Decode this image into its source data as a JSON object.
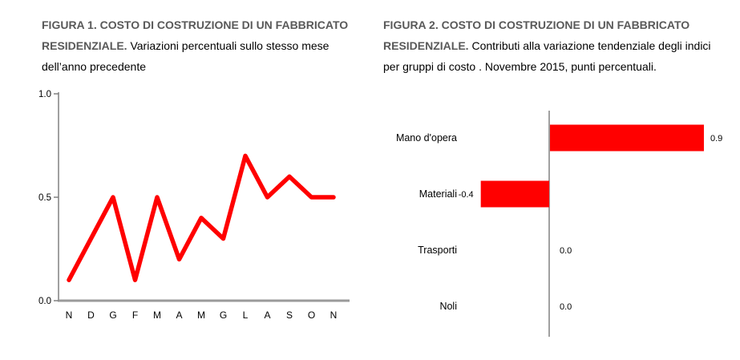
{
  "figure1": {
    "title_bold": "FIGURA 1. COSTO DI COSTRUZIONE DI UN FABBRICATO RESIDENZIALE.",
    "title_rest": " Variazioni percentuali sullo stesso mese dell’anno precedente"
  },
  "figure2": {
    "title_bold": "FIGURA 2. COSTO DI COSTRUZIONE DI UN FABBRICATO RESIDENZIALE.",
    "title_rest": " Contributi alla variazione tendenziale degli indici per gruppi di costo . Novembre 2015, punti percentuali."
  },
  "colors": {
    "series_red": "#ff0000",
    "axis_gray": "#808080",
    "baseline_gray": "#9a9a9a",
    "title_gray": "#595959",
    "text_black": "#000000"
  },
  "chart_data": [
    {
      "id": "figura1",
      "type": "line",
      "title": "FIGURA 1. COSTO DI COSTRUZIONE DI UN FABBRICATO RESIDENZIALE. Variazioni percentuali sullo stesso mese dell’anno precedente",
      "categories": [
        "N",
        "D",
        "G",
        "F",
        "M",
        "A",
        "M",
        "G",
        "L",
        "A",
        "S",
        "O",
        "N"
      ],
      "values": [
        0.1,
        0.3,
        0.5,
        0.1,
        0.5,
        0.2,
        0.4,
        0.3,
        0.7,
        0.5,
        0.6,
        0.5,
        0.5
      ],
      "xlabel": "",
      "ylabel": "",
      "ylim": [
        0.0,
        1.0
      ],
      "yticks": [
        0.0,
        0.5,
        1.0
      ],
      "ytick_labels": [
        "0.0",
        "0.5",
        "1.0"
      ],
      "grid": false,
      "legend_position": "none",
      "line_color": "#ff0000"
    },
    {
      "id": "figura2",
      "type": "bar",
      "orientation": "horizontal",
      "title": "FIGURA 2. COSTO DI COSTRUZIONE DI UN FABBRICATO RESIDENZIALE. Contributi alla variazione tendenziale degli indici per gruppi di costo . Novembre 2015, punti percentuali.",
      "categories": [
        "Mano d'opera",
        "Materiali",
        "Trasporti",
        "Noli"
      ],
      "values": [
        0.9,
        -0.4,
        0.0,
        0.0
      ],
      "value_labels": [
        "0.9",
        "-0.4",
        "0.0",
        "0.0"
      ],
      "xlabel": "",
      "ylabel": "",
      "xlim": [
        -0.5,
        1.0
      ],
      "grid": false,
      "legend_position": "none",
      "bar_color": "#ff0000"
    }
  ]
}
